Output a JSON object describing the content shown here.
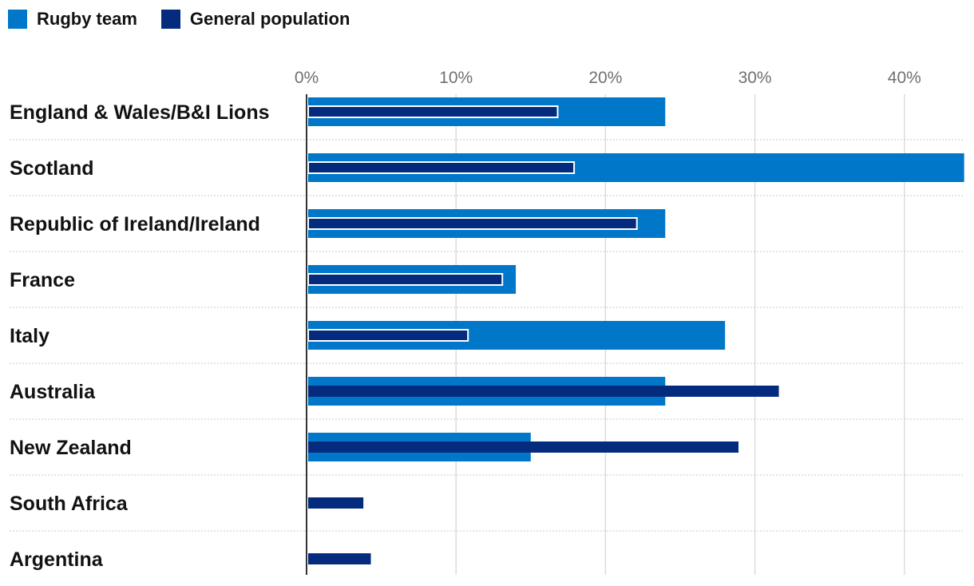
{
  "legend": {
    "rugby_label": "Rugby team",
    "general_label": "General population"
  },
  "colors": {
    "rugby": "#0077c8",
    "general": "#052b7e",
    "grid": "#dcdcdc",
    "axis": "#333333"
  },
  "chart_data": {
    "type": "bar",
    "orientation": "horizontal",
    "title": "",
    "xlabel": "",
    "ylabel": "",
    "xlim": [
      0,
      44
    ],
    "ticks": [
      0,
      10,
      20,
      30,
      40
    ],
    "tick_labels": [
      "0%",
      "10%",
      "20%",
      "30%",
      "40%"
    ],
    "categories": [
      "England & Wales/B&I Lions",
      "Scotland",
      "Republic of Ireland/Ireland",
      "France",
      "Italy",
      "Australia",
      "New Zealand",
      "South Africa",
      "Argentina"
    ],
    "series": [
      {
        "name": "Rugby team",
        "values": [
          24,
          44,
          24,
          14,
          28,
          24,
          15,
          null,
          null
        ]
      },
      {
        "name": "General population",
        "values": [
          16.8,
          17.9,
          22.1,
          13.1,
          10.8,
          31.6,
          28.9,
          3.8,
          4.3
        ]
      }
    ],
    "legend_position": "top-left"
  }
}
